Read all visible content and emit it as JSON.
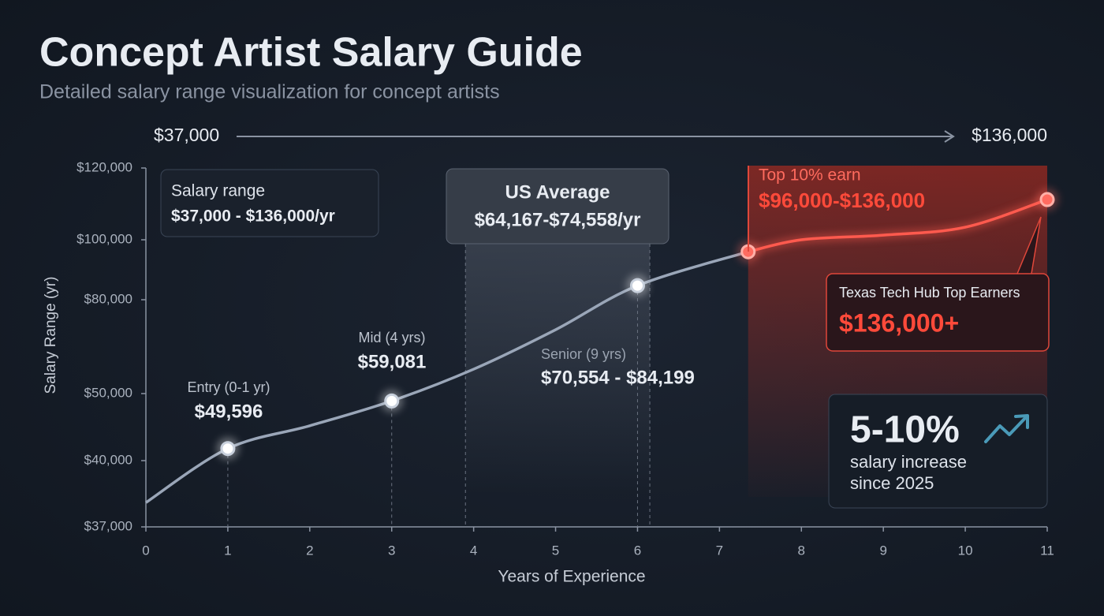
{
  "chart_data": {
    "type": "line",
    "title": "Concept Artist Salary Guide",
    "subtitle": "Detailed salary range visualization for concept artists",
    "range_start": "$37,000",
    "range_end": "$136,000",
    "x_label": "Years of Experience",
    "y_label": "Salary Range (yr)",
    "xlim": [
      0,
      11
    ],
    "xticks": [
      0,
      1,
      2,
      3,
      4,
      5,
      6,
      7,
      8,
      9,
      10,
      11
    ],
    "ylim": [
      37000,
      120000
    ],
    "yticks": [
      {
        "value": 37000,
        "label": "$37,000"
      },
      {
        "value": 40000,
        "label": "$40,000"
      },
      {
        "value": 50000,
        "label": "$50,000"
      },
      {
        "value": 80000,
        "label": "$80,000"
      },
      {
        "value": 100000,
        "label": "$100,000"
      },
      {
        "value": 120000,
        "label": "$120,000"
      }
    ],
    "series": [
      {
        "color": "#9aa6b8",
        "x": [
          0,
          1,
          2,
          3,
          4,
          5,
          6,
          7.35
        ],
        "values": [
          38100,
          41800,
          45200,
          48900,
          57800,
          70400,
          84700,
          96000
        ]
      },
      {
        "color": "#ff5a4e",
        "x": [
          7.35,
          8,
          9,
          10,
          11
        ],
        "values": [
          96000,
          100000,
          101300,
          103500,
          111200
        ]
      }
    ],
    "markers": {
      "x": [
        1,
        3,
        6,
        7.35,
        11
      ],
      "values": [
        41800,
        48900,
        84700,
        96000,
        111200
      ],
      "colors": [
        "#ffffff",
        "#ffffff",
        "#ffffff",
        "#ff6b60",
        "#ff6b60"
      ]
    },
    "bands": [
      {
        "x": [
          3.9,
          6.15
        ],
        "color": "#5a6270"
      },
      {
        "x": [
          7.35,
          11
        ],
        "color": "#e0301e"
      }
    ],
    "annotations": {
      "salary_range": {
        "label": "Salary range",
        "value": "$37,000 - $136,000/yr"
      },
      "us_average": {
        "label": "US Average",
        "value": "$64,167-$74,558/yr"
      },
      "top10": {
        "label": "Top 10% earn",
        "value": "$96,000-$136,000"
      },
      "entry": {
        "label": "Entry (0-1 yr)",
        "value": "$49,596"
      },
      "mid": {
        "label": "Mid (4 yrs)",
        "value": "$59,081"
      },
      "senior": {
        "label": "Senior (9 yrs)",
        "value": "$70,554 - $84,199"
      },
      "texas": {
        "label": "Texas Tech Hub Top Earners",
        "value": "$136,000+"
      },
      "growth": {
        "value": "5-10%",
        "line1": "salary increase",
        "line2": "since 2025"
      }
    }
  }
}
